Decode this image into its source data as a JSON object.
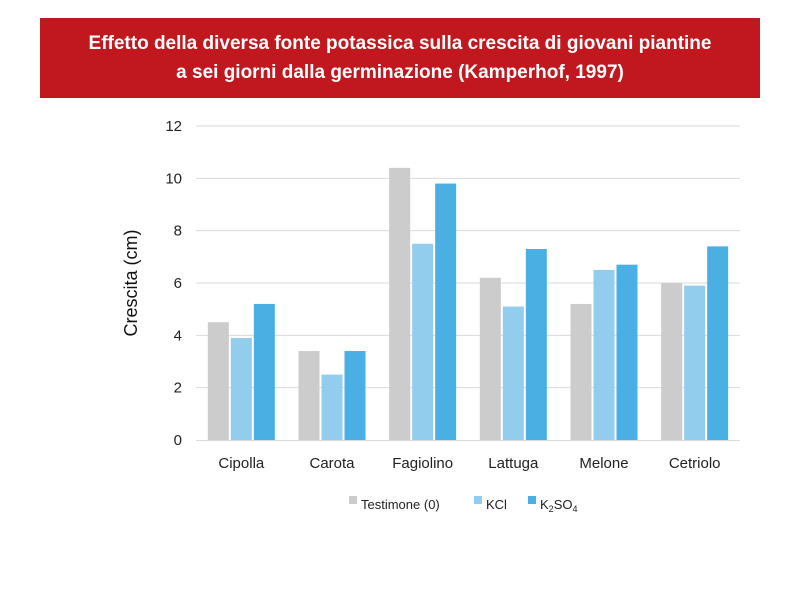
{
  "chart_data": {
    "type": "bar",
    "title_lines": [
      "Effetto della diversa fonte potassica sulla crescita di giovani piantine",
      "a sei giorni dalla germinazione (Kamperhof, 1997)"
    ],
    "ylabel": "Crescita (cm)",
    "xlabel": "",
    "ylim": [
      0,
      12
    ],
    "yticks": [
      0,
      2,
      4,
      6,
      8,
      10,
      12
    ],
    "grid": true,
    "legend_position": "bottom",
    "categories": [
      "Cipolla",
      "Carota",
      "Fagiolino",
      "Lattuga",
      "Melone",
      "Cetriolo"
    ],
    "series": [
      {
        "name": "Testimone (0)",
        "color": "#cccccc",
        "values": [
          4.5,
          3.4,
          10.4,
          6.2,
          5.2,
          6.0
        ]
      },
      {
        "name": "KCl",
        "color": "#93cdee",
        "values": [
          3.9,
          2.5,
          7.5,
          5.1,
          6.5,
          5.9
        ]
      },
      {
        "name": "K2SO4",
        "name_parts": [
          "K",
          "2",
          "SO",
          "4"
        ],
        "color": "#4ab0e4",
        "values": [
          5.2,
          3.4,
          9.8,
          7.3,
          6.7,
          7.4
        ]
      }
    ]
  }
}
